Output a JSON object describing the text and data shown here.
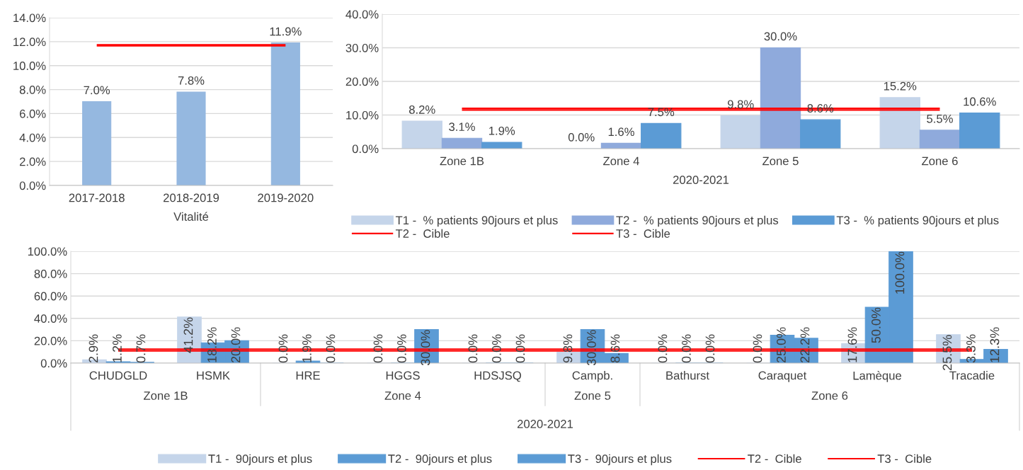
{
  "chart_data": [
    {
      "type": "bar",
      "categories": [
        "2017-2018",
        "2018-2019",
        "2019-2020"
      ],
      "xlabel": "Vitalité",
      "ylim": [
        0,
        14
      ],
      "yticks": [
        {
          "value": 0,
          "label": "0.0%"
        },
        {
          "value": 2,
          "label": "2.0%"
        },
        {
          "value": 4,
          "label": "4.0%"
        },
        {
          "value": 6,
          "label": "6.0%"
        },
        {
          "value": 8,
          "label": "8.0%"
        },
        {
          "value": 10,
          "label": "10.0%"
        },
        {
          "value": 12,
          "label": "12.0%"
        },
        {
          "value": 14,
          "label": "14.0%"
        }
      ],
      "grid": "y",
      "legend": false,
      "series": [
        {
          "color": "#95b8e0",
          "values": [
            7.0,
            7.8,
            11.9
          ],
          "value_labels": [
            "7.0%",
            "7.8%",
            "11.9%"
          ]
        }
      ],
      "ref_lines": [
        {
          "axis": "y",
          "value": 11.7,
          "color": "#ff0000",
          "line_style": "solid"
        }
      ]
    },
    {
      "type": "bar",
      "categories": [
        "Zone 1B",
        "Zone 4",
        "Zone 5",
        "Zone 6"
      ],
      "xlabel": "2020-2021",
      "ylim": [
        0,
        40
      ],
      "yticks": [
        {
          "value": 0,
          "label": "0.0%"
        },
        {
          "value": 10,
          "label": "10.0%"
        },
        {
          "value": 20,
          "label": "20.0%"
        },
        {
          "value": 30,
          "label": "30.0%"
        },
        {
          "value": 40,
          "label": "40.0%"
        }
      ],
      "grid": "y",
      "legend": "bottom",
      "series": [
        {
          "name": "T1 -  % patients 90jours et plus",
          "color": "#c5d5ea",
          "values": [
            8.2,
            0.0,
            9.8,
            15.2
          ],
          "value_labels": [
            "8.2%",
            "0.0%",
            "9.8%",
            "15.2%"
          ]
        },
        {
          "name": "T2 -  % patients 90jours et plus",
          "color": "#8faadc",
          "values": [
            3.1,
            1.6,
            30.0,
            5.5
          ],
          "value_labels": [
            "3.1%",
            "1.6%",
            "30.0%",
            "5.5%"
          ]
        },
        {
          "name": "T3 -  % patients 90jours et plus",
          "color": "#5b9bd5",
          "values": [
            1.9,
            7.5,
            8.6,
            10.6
          ],
          "value_labels": [
            "1.9%",
            "7.5%",
            "8.6%",
            "10.6%"
          ]
        }
      ],
      "ref_lines": [
        {
          "axis": "y",
          "value": 11.5,
          "label": "T2 -  Cible",
          "color": "#ff0000",
          "line_style": "solid"
        },
        {
          "axis": "y",
          "value": 12.0,
          "label": "T3 -  Cible",
          "color": "#ff0000",
          "line_style": "solid"
        }
      ]
    },
    {
      "type": "bar",
      "categories": [
        "CHUDGLD",
        "HSMK",
        "HRE",
        "HGGS",
        "HDSJSQ",
        "Campb.",
        "Bathurst",
        "Caraquet",
        "Lamèque",
        "Tracadie"
      ],
      "xlabel": "2020-2021",
      "annotations": [
        "Zone 1B",
        "Zone 4",
        "Zone 5",
        "Zone 6"
      ],
      "ylim": [
        0,
        100
      ],
      "yticks": [
        {
          "value": 0,
          "label": "0.0%"
        },
        {
          "value": 20,
          "label": "20.0%"
        },
        {
          "value": 40,
          "label": "40.0%"
        },
        {
          "value": 60,
          "label": "60.0%"
        },
        {
          "value": 80,
          "label": "80.0%"
        },
        {
          "value": 100,
          "label": "100.0%"
        }
      ],
      "grid": "y",
      "legend": "bottom",
      "series": [
        {
          "name": "T1 -  90jours et plus",
          "color": "#c5d5ea",
          "values": [
            2.9,
            41.2,
            0.0,
            0.0,
            0.0,
            9.8,
            0.0,
            0.0,
            17.6,
            25.5
          ],
          "value_labels": [
            "2.9%",
            "41.2%",
            "0.0%",
            "0.0%",
            "0.0%",
            "9.8%",
            "0.0%",
            "0.0%",
            "17.6%",
            "25.5%"
          ]
        },
        {
          "name": "T2 -  90jours et plus",
          "color": "#5b9bd5",
          "values": [
            1.2,
            18.2,
            1.9,
            0.0,
            0.0,
            30.0,
            0.0,
            25.0,
            50.0,
            3.3
          ],
          "value_labels": [
            "1.2%",
            "18.2%",
            "1.9%",
            "0.0%",
            "0.0%",
            "30.0%",
            "0.0%",
            "25.0%",
            "50.0%",
            "3.3%"
          ]
        },
        {
          "name": "T3 -  90jours et plus",
          "color": "#5b9bd5",
          "values": [
            0.7,
            20.0,
            0.0,
            30.0,
            0.0,
            8.6,
            0.0,
            22.2,
            100.0,
            12.3
          ],
          "value_labels": [
            "0.7%",
            "20.0%",
            "0.0%",
            "30.0%",
            "0.0%",
            "8.6%",
            "0.0%",
            "22.2%",
            "100.0%",
            "12.3%"
          ]
        }
      ],
      "ref_lines": [
        {
          "axis": "y",
          "value": 11.0,
          "label": "T2 -  Cible",
          "color": "#ff0000",
          "line_style": "solid"
        },
        {
          "axis": "y",
          "value": 12.5,
          "label": "T3 -  Cible",
          "color": "#ff0000",
          "line_style": "solid"
        }
      ]
    }
  ]
}
